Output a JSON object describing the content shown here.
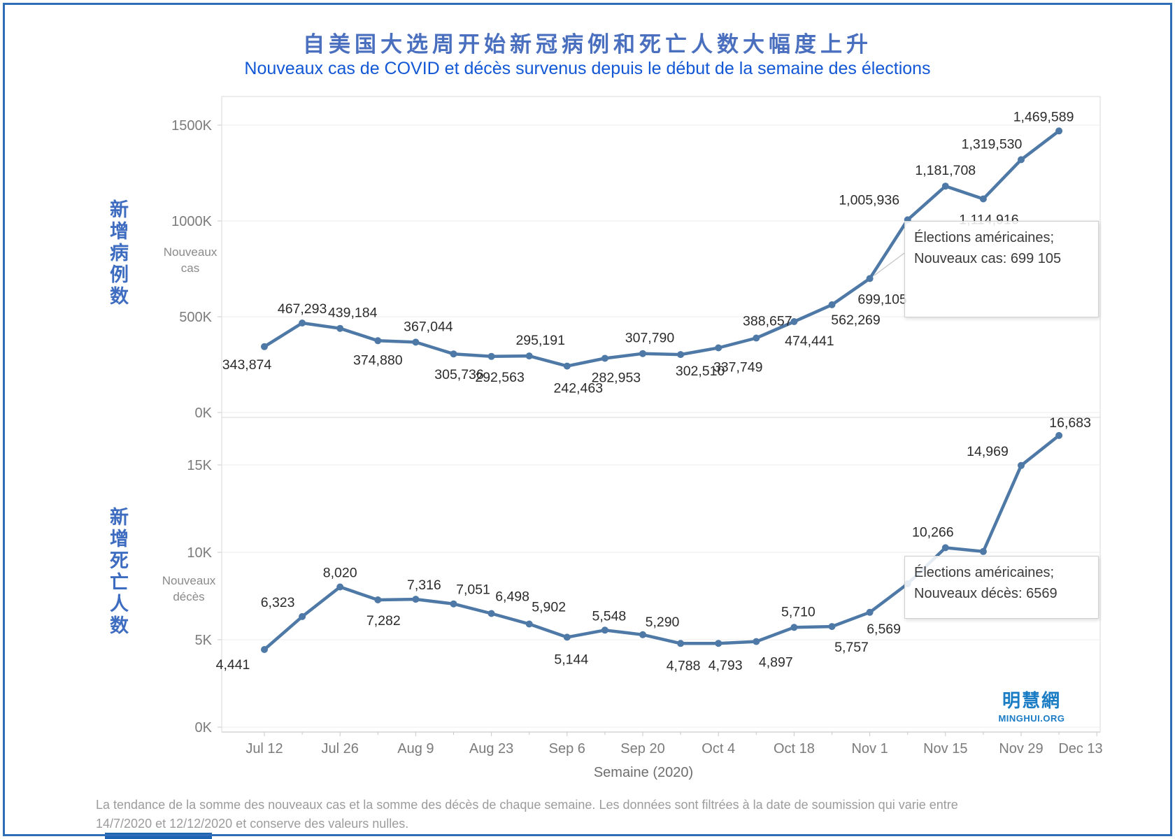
{
  "header": {
    "title_zh": "自美国大选周开始新冠病例和死亡人数大幅度上升",
    "title_fr": "Nouveaux cas de COVID et décès survenus depuis le début de la semaine des élections"
  },
  "palette": {
    "line": "#4e79a7",
    "grid": "#ececec",
    "axis_text": "#7b7b7b",
    "data_label": "#2c2c2c",
    "title_zh_color": "#4a6fbe",
    "title_fr_color": "#1257d5",
    "side_label_color": "#3d6cc0",
    "logo_blue": "#1a7cc4",
    "frame_blue": "#2f6db8",
    "bottom_bar_blue": "#1f64b0"
  },
  "x_axis": {
    "title": "Semaine (2020)",
    "tick_labels": [
      "Jul 12",
      "Jul 26",
      "Aug 9",
      "Aug 23",
      "Sep 6",
      "Sep 20",
      "Oct 4",
      "Oct 18",
      "Nov 1",
      "Nov 15",
      "Nov 29",
      "Dec 13"
    ]
  },
  "chart_data": [
    {
      "type": "line",
      "name": "nouveaux-cas",
      "side_label_zh": "新增病例数",
      "axis_label": "Nouveaux cas",
      "x": [
        "Jul 12",
        "Jul 19",
        "Jul 26",
        "Aug 2",
        "Aug 9",
        "Aug 16",
        "Aug 23",
        "Aug 30",
        "Sep 6",
        "Sep 13",
        "Sep 20",
        "Sep 27",
        "Oct 4",
        "Oct 11",
        "Oct 18",
        "Oct 25",
        "Nov 1",
        "Nov 8",
        "Nov 15",
        "Nov 22",
        "Nov 29",
        "Dec 6"
      ],
      "values": [
        343874,
        467293,
        439184,
        374880,
        367044,
        305736,
        292563,
        295191,
        242463,
        282953,
        307790,
        302510,
        337749,
        388657,
        474441,
        562269,
        699105,
        1005936,
        1181708,
        1114916,
        1319530,
        1469589
      ],
      "labels": [
        "343,874",
        "467,293",
        "439,184",
        "374,880",
        "367,044",
        "305,736",
        "292,563",
        "295,191",
        "242,463",
        "282,953",
        "307,790",
        "302,510",
        "337,749",
        "388,657",
        "474,441",
        "562,269",
        "699,105",
        "1,005,936",
        "1,181,708",
        "1,114,916",
        "1,319,530",
        "1,469,589"
      ],
      "label_dx": [
        -25,
        0,
        18,
        0,
        18,
        8,
        12,
        16,
        16,
        16,
        10,
        28,
        28,
        16,
        22,
        34,
        18,
        -55,
        0,
        8,
        -42,
        -22
      ],
      "label_dy": [
        32,
        -14,
        -16,
        34,
        -16,
        36,
        36,
        -16,
        38,
        34,
        -16,
        30,
        34,
        -18,
        34,
        28,
        36,
        -22,
        -16,
        36,
        -16,
        -14
      ],
      "yticks": [
        {
          "value": 0,
          "label": "0K"
        },
        {
          "value": 500000,
          "label": "500K"
        },
        {
          "value": 1000000,
          "label": "1000K"
        },
        {
          "value": 1500000,
          "label": "1500K"
        }
      ],
      "ylim": [
        0,
        1650000
      ],
      "grid": true,
      "annotation": {
        "line1": "Élections américaines;",
        "line2": "Nouveaux cas: 699 105"
      }
    },
    {
      "type": "line",
      "name": "nouveaux-deces",
      "side_label_zh": "新增死亡人数",
      "axis_label": "Nouveaux décès",
      "x": [
        "Jul 12",
        "Jul 19",
        "Jul 26",
        "Aug 2",
        "Aug 9",
        "Aug 16",
        "Aug 23",
        "Aug 30",
        "Sep 6",
        "Sep 13",
        "Sep 20",
        "Sep 27",
        "Oct 4",
        "Oct 11",
        "Oct 18",
        "Oct 25",
        "Nov 1",
        "Nov 8",
        "Nov 15",
        "Nov 22",
        "Nov 29",
        "Dec 6"
      ],
      "values": [
        4441,
        6323,
        8020,
        7282,
        7316,
        7051,
        6498,
        5902,
        5144,
        5548,
        5290,
        4788,
        4793,
        4897,
        5710,
        5757,
        6569,
        8200,
        10266,
        10050,
        14969,
        16683
      ],
      "labels": [
        "4,441",
        "6,323",
        "8,020",
        "7,282",
        "7,316",
        "7,051",
        "6,498",
        "5,902",
        "5,144",
        "5,548",
        "5,290",
        "4,788",
        "4,793",
        "4,897",
        "5,710",
        "5,757",
        "6,569",
        null,
        "10,266",
        null,
        "14,969",
        "16,683"
      ],
      "label_dx": [
        -45,
        -35,
        0,
        8,
        12,
        28,
        30,
        28,
        6,
        6,
        28,
        4,
        10,
        28,
        6,
        28,
        20,
        0,
        -18,
        0,
        -48,
        16
      ],
      "label_dy": [
        28,
        -14,
        -14,
        36,
        -14,
        -14,
        -18,
        -18,
        38,
        -14,
        -12,
        38,
        38,
        36,
        -16,
        36,
        30,
        0,
        -16,
        0,
        -14,
        -12
      ],
      "yticks": [
        {
          "value": 0,
          "label": "0K"
        },
        {
          "value": 5000,
          "label": "5K"
        },
        {
          "value": 10000,
          "label": "10K"
        },
        {
          "value": 15000,
          "label": "15K"
        }
      ],
      "ylim": [
        0,
        17700
      ],
      "grid": true,
      "annotation": {
        "line1": "Élections américaines;",
        "line2": "Nouveaux décès: 6569"
      }
    }
  ],
  "footer": {
    "line1": "La tendance de la somme des nouveaux cas et la somme des décès de chaque semaine. Les données sont filtrées à la date de soumission qui varie entre",
    "line2": "14/7/2020 et 12/12/2020 et conserve des valeurs nulles."
  },
  "logo": {
    "zh": "明慧網",
    "en": "MINGHUI.ORG"
  }
}
